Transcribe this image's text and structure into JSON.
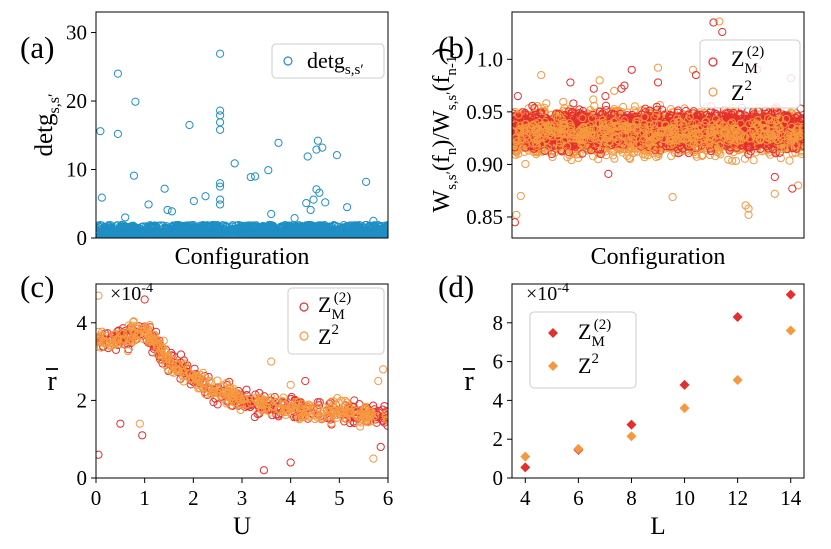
{
  "chart_data": [
    {
      "panel": "(a)",
      "type": "scatter",
      "title": "",
      "xlabel": "Configuration",
      "ylabel": "detg",
      "ylabel_sub": "s,s′",
      "ylim": [
        0,
        33
      ],
      "yticks": [
        0,
        10,
        20,
        30
      ],
      "xticks": [],
      "legend": "top-right",
      "series": [
        {
          "name": "detg",
          "name_sub": "s,s′",
          "color": "#1f8fc4",
          "marker": "circle-open",
          "background_band": {
            "count": 1800,
            "ymin": 0.05,
            "ymax": 1.9
          },
          "points": [
            [
              0.015,
              15.6
            ],
            [
              0.075,
              24.0
            ],
            [
              0.075,
              15.2
            ],
            [
              0.13,
              9.1
            ],
            [
              0.135,
              19.9
            ],
            [
              0.18,
              4.9
            ],
            [
              0.235,
              7.2
            ],
            [
              0.245,
              4.1
            ],
            [
              0.26,
              3.9
            ],
            [
              0.32,
              16.5
            ],
            [
              0.335,
              5.4
            ],
            [
              0.375,
              6.1
            ],
            [
              0.425,
              26.9
            ],
            [
              0.425,
              18.6
            ],
            [
              0.425,
              17.9
            ],
            [
              0.425,
              16.9
            ],
            [
              0.425,
              15.8
            ],
            [
              0.425,
              8.0
            ],
            [
              0.425,
              7.5
            ],
            [
              0.425,
              5.6
            ],
            [
              0.425,
              4.9
            ],
            [
              0.475,
              10.9
            ],
            [
              0.53,
              8.9
            ],
            [
              0.545,
              9.0
            ],
            [
              0.59,
              9.9
            ],
            [
              0.625,
              13.9
            ],
            [
              0.725,
              11.9
            ],
            [
              0.76,
              14.2
            ],
            [
              0.755,
              12.9
            ],
            [
              0.775,
              13.2
            ],
            [
              0.755,
              7.1
            ],
            [
              0.765,
              6.6
            ],
            [
              0.745,
              5.6
            ],
            [
              0.735,
              4.1
            ],
            [
              0.785,
              5.2
            ],
            [
              0.72,
              5.1
            ],
            [
              0.825,
              12.1
            ],
            [
              0.925,
              8.2
            ],
            [
              0.86,
              4.5
            ],
            [
              0.02,
              5.9
            ],
            [
              0.1,
              3.0
            ],
            [
              0.6,
              3.5
            ],
            [
              0.68,
              2.9
            ],
            [
              0.95,
              2.5
            ]
          ]
        }
      ]
    },
    {
      "panel": "(b)",
      "type": "scatter",
      "title": "",
      "xlabel": "Configuration",
      "ylabel": "W_{s,s′}(f_n)/W_{s,s′}(f_{n-1})",
      "ylim": [
        0.83,
        1.045
      ],
      "yticks": [
        0.85,
        0.9,
        0.95,
        1.0
      ],
      "xticks": [],
      "legend": "top-right",
      "series": [
        {
          "name": "Z",
          "name_sup": "(2)",
          "name_sub": "M",
          "color": "#e52e2e",
          "marker": "circle-open",
          "band": {
            "count": 1300,
            "center": 0.933,
            "spread": 0.022
          },
          "points": [
            [
              0.01,
              0.845
            ],
            [
              0.2,
              0.978
            ],
            [
              0.21,
              0.958
            ],
            [
              0.41,
              0.99
            ],
            [
              0.385,
              0.975
            ],
            [
              0.375,
              0.972
            ],
            [
              0.28,
              0.972
            ],
            [
              0.32,
              0.965
            ],
            [
              0.33,
              0.891
            ],
            [
              0.96,
              0.877
            ],
            [
              0.69,
              1.035
            ],
            [
              0.72,
              1.026
            ],
            [
              0.84,
              0.99
            ],
            [
              0.955,
              0.982
            ],
            [
              0.63,
              0.985
            ],
            [
              0.5,
              0.978
            ],
            [
              0.02,
              0.965
            ],
            [
              0.9,
              0.888
            ]
          ]
        },
        {
          "name": "Z",
          "name_sup": "2",
          "color": "#f5983f",
          "marker": "circle-open",
          "band": {
            "count": 2200,
            "center": 0.93,
            "spread": 0.026
          },
          "points": [
            [
              0.015,
              0.852
            ],
            [
              0.81,
              0.852
            ],
            [
              0.81,
              0.858
            ],
            [
              0.8,
              0.861
            ],
            [
              0.98,
              0.88
            ],
            [
              0.03,
              0.87
            ],
            [
              0.9,
              0.872
            ],
            [
              0.55,
              0.869
            ],
            [
              0.71,
              1.036
            ],
            [
              0.5,
              0.992
            ],
            [
              0.62,
              0.99
            ],
            [
              0.1,
              0.985
            ],
            [
              0.3,
              0.98
            ],
            [
              0.35,
              0.97
            ]
          ]
        }
      ]
    },
    {
      "panel": "(c)",
      "type": "scatter",
      "title": "",
      "xlabel": "U",
      "ylabel": "r̄",
      "ylabel_display": "r",
      "multiplier": "×10",
      "multiplier_exp": "-4",
      "xlim": [
        0,
        6
      ],
      "ylim": [
        0,
        5
      ],
      "xticks": [
        0,
        1,
        2,
        3,
        4,
        5,
        6
      ],
      "yticks": [
        0,
        2,
        4
      ],
      "legend": "top-right",
      "trend_x": [
        0,
        0.5,
        1.0,
        1.5,
        2.0,
        2.5,
        3.0,
        4.0,
        5.0,
        6.0
      ],
      "trend_y": [
        3.5,
        3.6,
        3.8,
        3.0,
        2.6,
        2.2,
        2.0,
        1.8,
        1.7,
        1.6
      ],
      "series": [
        {
          "name": "Z",
          "name_sup": "(2)",
          "name_sub": "M",
          "color": "#e52e2e",
          "marker": "circle-open",
          "count": 330,
          "spread": 0.3,
          "outliers": [
            [
              0.05,
              0.6
            ],
            [
              0.5,
              1.4
            ],
            [
              0.95,
              1.1
            ],
            [
              1.0,
              4.6
            ],
            [
              1.1,
              3.5
            ],
            [
              3.45,
              0.2
            ],
            [
              4.0,
              0.4
            ],
            [
              4.3,
              2.5
            ],
            [
              5.85,
              0.8
            ]
          ]
        },
        {
          "name": "Z",
          "name_sup": "2",
          "color": "#f5983f",
          "marker": "circle-open",
          "count": 380,
          "spread": 0.26,
          "outliers": [
            [
              0.05,
              4.7
            ],
            [
              0.9,
              1.4
            ],
            [
              3.6,
              3.0
            ],
            [
              4.0,
              2.4
            ],
            [
              5.7,
              0.5
            ],
            [
              5.9,
              2.8
            ],
            [
              5.8,
              2.5
            ]
          ]
        }
      ]
    },
    {
      "panel": "(d)",
      "type": "scatter",
      "title": "",
      "xlabel": "L",
      "ylabel": "r̄",
      "ylabel_display": "r",
      "multiplier": "×10",
      "multiplier_exp": "-4",
      "xlim": [
        3.5,
        14.5
      ],
      "ylim": [
        0,
        10
      ],
      "xticks": [
        4,
        6,
        8,
        10,
        12,
        14
      ],
      "yticks": [
        0,
        2,
        4,
        6,
        8
      ],
      "x": [
        4,
        6,
        8,
        10,
        12,
        14
      ],
      "legend": "upper-left",
      "series": [
        {
          "name": "Z",
          "name_sup": "(2)",
          "name_sub": "M",
          "color": "#e52e2e",
          "marker": "diamond",
          "values": [
            0.55,
            1.45,
            2.75,
            4.8,
            8.3,
            9.45
          ]
        },
        {
          "name": "Z",
          "name_sup": "2",
          "color": "#f5983f",
          "marker": "diamond",
          "values": [
            1.1,
            1.5,
            2.15,
            3.6,
            5.05,
            7.6
          ]
        }
      ]
    }
  ]
}
